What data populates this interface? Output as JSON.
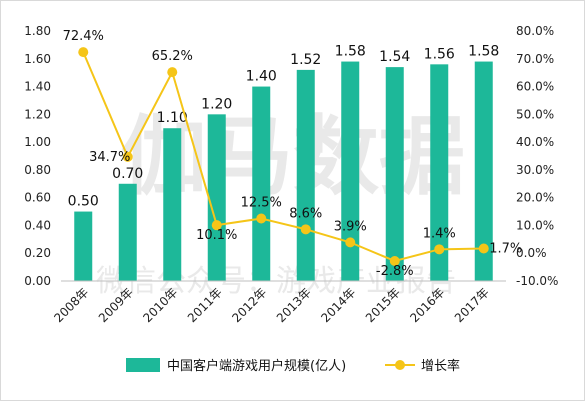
{
  "chart_data": {
    "type": "bar",
    "categories": [
      "2008年",
      "2009年",
      "2010年",
      "2011年",
      "2012年",
      "2013年",
      "2014年",
      "2015年",
      "2016年",
      "2017年"
    ],
    "series": [
      {
        "name": "中国客户端游戏用户规模(亿人)",
        "type": "bar",
        "axis": "left",
        "color": "#1db899",
        "values": [
          0.5,
          0.7,
          1.1,
          1.2,
          1.4,
          1.52,
          1.58,
          1.54,
          1.56,
          1.58
        ],
        "labels": [
          "0.50",
          "0.70",
          "1.10",
          "1.20",
          "1.40",
          "1.52",
          "1.58",
          "1.54",
          "1.56",
          "1.58"
        ]
      },
      {
        "name": "增长率",
        "type": "line",
        "axis": "right",
        "color": "#f5c518",
        "values": [
          72.4,
          34.7,
          65.2,
          10.1,
          12.5,
          8.6,
          3.9,
          -2.8,
          1.4,
          1.7
        ],
        "labels": [
          "72.4%",
          "34.7%",
          "65.2%",
          "10.1%",
          "12.5%",
          "8.6%",
          "3.9%",
          "-2.8%",
          "1.4%",
          "1.7%"
        ]
      }
    ],
    "y_left": {
      "min": 0,
      "max": 1.8,
      "ticks": [
        "0.00",
        "0.20",
        "0.40",
        "0.60",
        "0.80",
        "1.00",
        "1.20",
        "1.40",
        "1.60",
        "1.80"
      ]
    },
    "y_right": {
      "min": -10,
      "max": 80,
      "ticks": [
        "-10.0%",
        "0.0%",
        "10.0%",
        "20.0%",
        "30.0%",
        "40.0%",
        "50.0%",
        "60.0%",
        "70.0%",
        "80.0%"
      ]
    },
    "grid": false,
    "legend": "bottom",
    "watermark": [
      "伽马数据",
      "微信公众号：游戏产业报告"
    ]
  }
}
